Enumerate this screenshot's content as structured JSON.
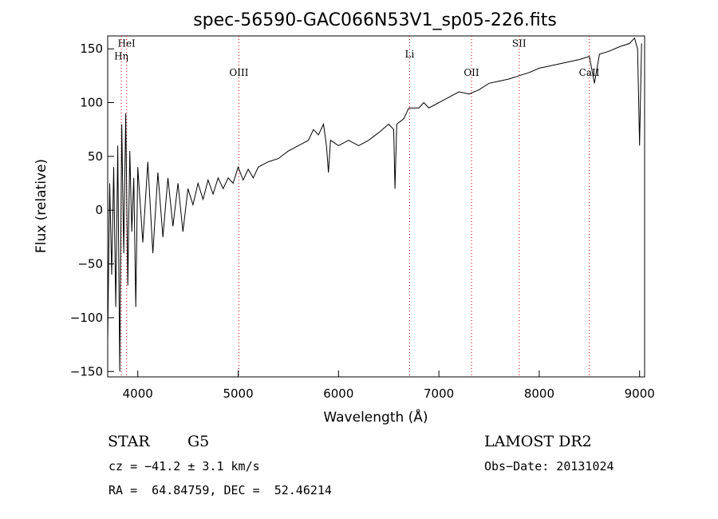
{
  "chart_data": {
    "type": "line",
    "title": "spec-56590-GAC066N53V1_sp05-226.fits",
    "xlabel": "Wavelength (Å)",
    "ylabel": "Flux (relative)",
    "xlim": [
      3700,
      9050
    ],
    "ylim": [
      -155,
      162
    ],
    "x_ticks": [
      4000,
      5000,
      6000,
      7000,
      8000,
      9000
    ],
    "y_ticks": [
      -150,
      -100,
      -50,
      0,
      50,
      100,
      150
    ],
    "grid": false,
    "line_color": "#000000",
    "line_marker_color": "#cc0000",
    "series": [
      {
        "values": [
          [
            3700,
            -120
          ],
          [
            3720,
            25
          ],
          [
            3740,
            -60
          ],
          [
            3760,
            40
          ],
          [
            3780,
            -90
          ],
          [
            3800,
            60
          ],
          [
            3820,
            -150
          ],
          [
            3840,
            80
          ],
          [
            3860,
            -40
          ],
          [
            3880,
            90
          ],
          [
            3900,
            -70
          ],
          [
            3920,
            55
          ],
          [
            3940,
            -20
          ],
          [
            3960,
            30
          ],
          [
            3980,
            -90
          ],
          [
            4000,
            40
          ],
          [
            4050,
            -30
          ],
          [
            4100,
            45
          ],
          [
            4150,
            -40
          ],
          [
            4200,
            35
          ],
          [
            4250,
            -25
          ],
          [
            4300,
            30
          ],
          [
            4350,
            -15
          ],
          [
            4400,
            25
          ],
          [
            4450,
            -20
          ],
          [
            4500,
            20
          ],
          [
            4550,
            5
          ],
          [
            4600,
            25
          ],
          [
            4650,
            10
          ],
          [
            4700,
            28
          ],
          [
            4750,
            15
          ],
          [
            4800,
            30
          ],
          [
            4850,
            20
          ],
          [
            4900,
            30
          ],
          [
            4950,
            25
          ],
          [
            5000,
            40
          ],
          [
            5050,
            28
          ],
          [
            5100,
            38
          ],
          [
            5150,
            30
          ],
          [
            5200,
            40
          ],
          [
            5300,
            45
          ],
          [
            5400,
            48
          ],
          [
            5500,
            55
          ],
          [
            5600,
            60
          ],
          [
            5700,
            65
          ],
          [
            5750,
            75
          ],
          [
            5800,
            70
          ],
          [
            5850,
            80
          ],
          [
            5880,
            60
          ],
          [
            5900,
            35
          ],
          [
            5920,
            65
          ],
          [
            6000,
            60
          ],
          [
            6100,
            65
          ],
          [
            6200,
            60
          ],
          [
            6300,
            65
          ],
          [
            6400,
            72
          ],
          [
            6500,
            80
          ],
          [
            6550,
            75
          ],
          [
            6563,
            20
          ],
          [
            6580,
            80
          ],
          [
            6650,
            85
          ],
          [
            6700,
            95
          ],
          [
            6800,
            95
          ],
          [
            6850,
            100
          ],
          [
            6900,
            95
          ],
          [
            7000,
            100
          ],
          [
            7100,
            105
          ],
          [
            7200,
            110
          ],
          [
            7300,
            108
          ],
          [
            7400,
            112
          ],
          [
            7500,
            118
          ],
          [
            7600,
            120
          ],
          [
            7700,
            122
          ],
          [
            7800,
            125
          ],
          [
            7900,
            128
          ],
          [
            8000,
            132
          ],
          [
            8100,
            134
          ],
          [
            8200,
            136
          ],
          [
            8300,
            138
          ],
          [
            8400,
            140
          ],
          [
            8500,
            143
          ],
          [
            8550,
            118
          ],
          [
            8600,
            145
          ],
          [
            8700,
            148
          ],
          [
            8800,
            152
          ],
          [
            8900,
            155
          ],
          [
            8950,
            160
          ],
          [
            8980,
            150
          ],
          [
            9000,
            60
          ],
          [
            9020,
            155
          ]
        ]
      }
    ],
    "lines": [
      {
        "label": "HeI",
        "x": 3888,
        "label_y": 152
      },
      {
        "label": "Hη",
        "x": 3835,
        "label_y": 140
      },
      {
        "label": "OIII",
        "x": 5007,
        "label_y": 125
      },
      {
        "label": "Li",
        "x": 6708,
        "label_y": 142
      },
      {
        "label": "OII",
        "x": 7325,
        "label_y": 125
      },
      {
        "label": "SII",
        "x": 7800,
        "label_y": 152
      },
      {
        "label": "CaII",
        "x": 8498,
        "label_y": 125
      }
    ]
  },
  "info": {
    "object_type": "STAR",
    "subclass": "G5",
    "survey": "LAMOST DR2",
    "cz": "cz = −41.2 ± 3.1 km/s",
    "obs_date": "Obs−Date: 20131024",
    "coords": "RA =  64.84759, DEC =  52.46214"
  }
}
